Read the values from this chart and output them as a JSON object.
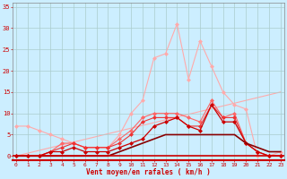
{
  "xlabel": "Vent moyen/en rafales ( km/h )",
  "bg_color": "#cceeff",
  "grid_color": "#aacccc",
  "x_ticks": [
    0,
    1,
    2,
    3,
    4,
    5,
    6,
    7,
    8,
    9,
    10,
    11,
    12,
    13,
    14,
    15,
    16,
    17,
    18,
    19,
    20,
    21,
    22,
    23
  ],
  "y_ticks": [
    0,
    5,
    10,
    15,
    20,
    25,
    30,
    35
  ],
  "ylim": [
    -1,
    36
  ],
  "xlim": [
    -0.3,
    23.3
  ],
  "series": [
    {
      "x": [
        0,
        23
      ],
      "y": [
        0,
        15
      ],
      "color": "#ffaaaa",
      "marker": null,
      "markersize": 0,
      "linewidth": 0.8,
      "zorder": 1
    },
    {
      "x": [
        0,
        1,
        2,
        3,
        4,
        5,
        6,
        7,
        8,
        9,
        10,
        11,
        12,
        13,
        14,
        15,
        16,
        17,
        18,
        19,
        20,
        21,
        22,
        23
      ],
      "y": [
        7,
        7,
        6,
        5,
        4,
        3,
        2,
        2,
        2,
        5,
        10,
        13,
        23,
        24,
        31,
        18,
        27,
        21,
        15,
        12,
        11,
        0,
        0,
        1
      ],
      "color": "#ffaaaa",
      "marker": "D",
      "markersize": 2,
      "linewidth": 0.8,
      "zorder": 2
    },
    {
      "x": [
        0,
        1,
        2,
        3,
        4,
        5,
        6,
        7,
        8,
        9,
        10,
        11,
        12,
        13,
        14,
        15,
        16,
        17,
        18,
        19,
        20,
        21,
        22,
        23
      ],
      "y": [
        0,
        0,
        0,
        1,
        3,
        3,
        2,
        2,
        2,
        4,
        6,
        9,
        10,
        10,
        10,
        9,
        8,
        13,
        9,
        10,
        3,
        1,
        0,
        0
      ],
      "color": "#ff6666",
      "marker": "D",
      "markersize": 2,
      "linewidth": 0.8,
      "zorder": 3
    },
    {
      "x": [
        0,
        1,
        2,
        3,
        4,
        5,
        6,
        7,
        8,
        9,
        10,
        11,
        12,
        13,
        14,
        15,
        16,
        17,
        18,
        19,
        20,
        21,
        22,
        23
      ],
      "y": [
        0,
        0,
        0,
        1,
        2,
        3,
        2,
        2,
        2,
        3,
        5,
        8,
        9,
        9,
        9,
        7,
        7,
        12,
        9,
        9,
        3,
        1,
        0,
        0
      ],
      "color": "#ee3333",
      "marker": "D",
      "markersize": 2,
      "linewidth": 0.8,
      "zorder": 4
    },
    {
      "x": [
        0,
        1,
        2,
        3,
        4,
        5,
        6,
        7,
        8,
        9,
        10,
        11,
        12,
        13,
        14,
        15,
        16,
        17,
        18,
        19,
        20,
        21,
        22,
        23
      ],
      "y": [
        0,
        0,
        0,
        1,
        1,
        2,
        1,
        1,
        1,
        2,
        3,
        4,
        7,
        8,
        9,
        7,
        6,
        12,
        8,
        8,
        3,
        1,
        0,
        0
      ],
      "color": "#cc0000",
      "marker": "D",
      "markersize": 2,
      "linewidth": 0.9,
      "zorder": 5
    },
    {
      "x": [
        0,
        1,
        2,
        3,
        4,
        5,
        6,
        7,
        8,
        9,
        10,
        11,
        12,
        13,
        14,
        15,
        16,
        17,
        18,
        19,
        20,
        21,
        22,
        23
      ],
      "y": [
        0,
        0,
        0,
        0,
        0,
        0,
        0,
        0,
        0,
        1,
        2,
        3,
        4,
        5,
        5,
        5,
        5,
        5,
        5,
        5,
        3,
        2,
        1,
        1
      ],
      "color": "#880000",
      "marker": null,
      "markersize": 0,
      "linewidth": 1.2,
      "zorder": 6
    }
  ]
}
